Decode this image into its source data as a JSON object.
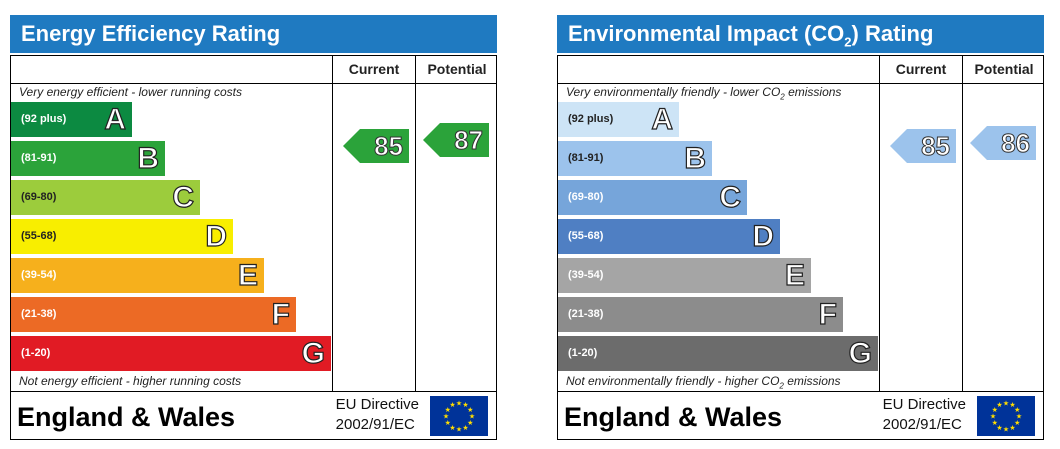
{
  "chart_data": [
    {
      "type": "bar",
      "title": "Energy Efficiency Rating",
      "columns": [
        "Current",
        "Potential"
      ],
      "top_note": "Very energy efficient - lower running costs",
      "bottom_note": "Not energy efficient - higher running costs",
      "categories": [
        "A",
        "B",
        "C",
        "D",
        "E",
        "F",
        "G"
      ],
      "ranges": [
        "(92 plus)",
        "(81-91)",
        "(69-80)",
        "(55-68)",
        "(39-54)",
        "(21-38)",
        "(1-20)"
      ],
      "band_colors": [
        "#008054",
        "#19b459",
        "#8dce46",
        "#ffd500",
        "#fcaa65",
        "#ef8023",
        "#e9153b"
      ],
      "band_colors_actual": [
        "#0c8a41",
        "#2ba33a",
        "#9ccc3c",
        "#f8ee00",
        "#f6b01c",
        "#ec6a25",
        "#e11b24"
      ],
      "letter_colors": [
        "#ffffff",
        "#ffffff",
        "#ffffff",
        "#ffffff",
        "#ffffff",
        "#ffffff",
        "#ffffff"
      ],
      "current": 85,
      "potential": 87,
      "current_color": "#2ba33a",
      "potential_color": "#2ba33a",
      "country": "England & Wales",
      "directive_line1": "EU Directive",
      "directive_line2": "2002/91/EC"
    },
    {
      "type": "bar",
      "title": "Environmental Impact (CO",
      "title_sub": "2",
      "title_end": ") Rating",
      "columns": [
        "Current",
        "Potential"
      ],
      "top_note": "Very environmentally friendly - lower CO",
      "top_note_sub": "2",
      "top_note_end": " emissions",
      "bottom_note": "Not environmentally friendly - higher CO",
      "bottom_note_sub": "2",
      "bottom_note_end": " emissions",
      "categories": [
        "A",
        "B",
        "C",
        "D",
        "E",
        "F",
        "G"
      ],
      "ranges": [
        "(92 plus)",
        "(81-91)",
        "(69-80)",
        "(55-68)",
        "(39-54)",
        "(21-38)",
        "(1-20)"
      ],
      "band_colors_actual": [
        "#cde4f6",
        "#9cc3ec",
        "#76a5da",
        "#4f7fc3",
        "#a5a5a5",
        "#8c8c8c",
        "#6c6c6c"
      ],
      "letter_colors": [
        "#ffffff",
        "#ffffff",
        "#ffffff",
        "#ffffff",
        "#ffffff",
        "#ffffff",
        "#ffffff"
      ],
      "current": 85,
      "potential": 86,
      "current_color": "#9cc3ec",
      "potential_color": "#9cc3ec",
      "country": "England & Wales",
      "directive_line1": "EU Directive",
      "directive_line2": "2002/91/EC"
    }
  ],
  "theme": {
    "title_bar_color": "#1f7ac1",
    "flag_color": "#003399",
    "star_color": "#ffdd00"
  }
}
